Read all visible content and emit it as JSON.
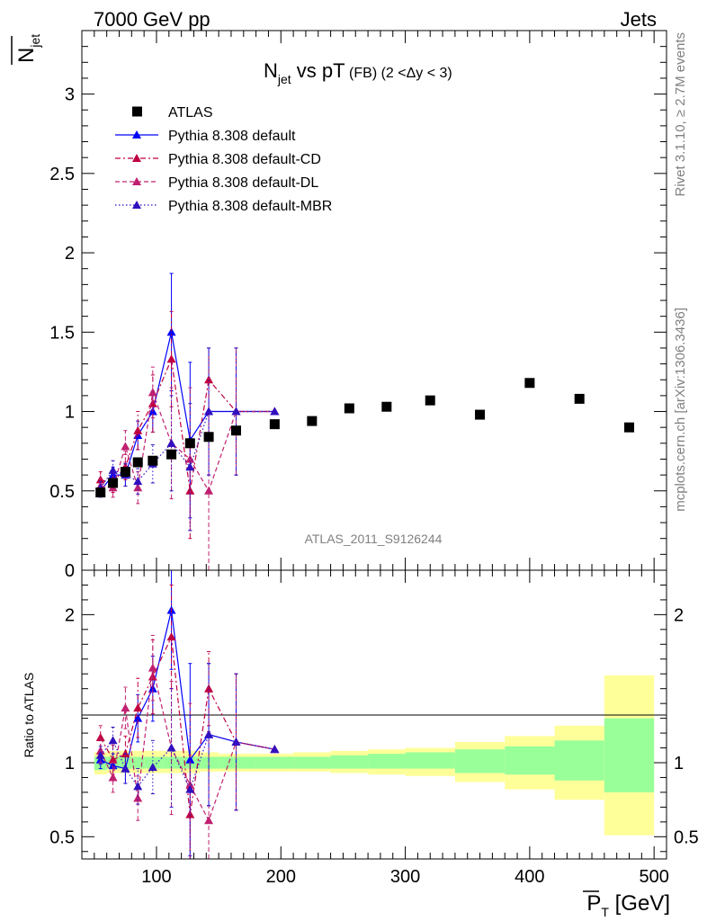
{
  "header": {
    "left": "7000 GeV pp",
    "right": "Jets"
  },
  "side_text": {
    "top": "Rivet 3.1.10, ≥ 2.7M events",
    "bottom": "mcplots.cern.ch [arXiv:1306.3436]"
  },
  "watermark": "ATLAS_2011_S9126244",
  "chart_data": [
    {
      "type": "scatter",
      "title_parts": {
        "n": "N",
        "sub": "jet",
        "mid": " vs pT",
        "tail": " (FB) (2 <Δy < 3)"
      },
      "ylabel_parts": {
        "n": "N",
        "sub": "jet"
      },
      "ylim": [
        0,
        3.4
      ],
      "xlim": [
        40,
        510
      ],
      "yticks": [
        0,
        0.5,
        1,
        1.5,
        2,
        2.5,
        3
      ],
      "yticklabels": [
        "0",
        "0.5",
        "1",
        "1.5",
        "2",
        "2.5",
        "3"
      ],
      "legend": [
        {
          "label": "ATLAS",
          "key": "atlas"
        },
        {
          "label": "Pythia 8.308 default",
          "key": "default"
        },
        {
          "label": "Pythia 8.308 default-CD",
          "key": "cd"
        },
        {
          "label": "Pythia 8.308 default-DL",
          "key": "dl"
        },
        {
          "label": "Pythia 8.308 default-MBR",
          "key": "mbr"
        }
      ],
      "legend_position": "top-left",
      "series": [
        {
          "key": "atlas",
          "name": "ATLAS",
          "color": "#000000",
          "marker": "square",
          "x": [
            55,
            65,
            75,
            85,
            97,
            112,
            127,
            142,
            164,
            195,
            225,
            255,
            285,
            320,
            360,
            400,
            440,
            480
          ],
          "y": [
            0.49,
            0.55,
            0.62,
            0.68,
            0.69,
            0.73,
            0.8,
            0.84,
            0.88,
            0.92,
            0.94,
            1.02,
            1.03,
            1.07,
            0.98,
            1.18,
            1.08,
            0.9
          ]
        },
        {
          "key": "default",
          "name": "Pythia 8.308 default",
          "color": "#0000ff",
          "dash": "",
          "marker": "triangle",
          "x": [
            55,
            65,
            75,
            85,
            97,
            112,
            127,
            142,
            164,
            195
          ],
          "y": [
            0.5,
            0.6,
            0.6,
            0.85,
            1.0,
            1.5,
            0.82,
            1.0,
            1.0,
            1.0
          ],
          "yerr": [
            0.04,
            0.05,
            0.07,
            0.09,
            0.13,
            0.37,
            0.49,
            0.4,
            0.4,
            0
          ]
        },
        {
          "key": "cd",
          "name": "Pythia 8.308 default-CD",
          "color": "#c00040",
          "dash": "6,3,2,3",
          "marker": "triangle",
          "x": [
            55,
            65,
            75,
            85,
            97,
            112,
            127,
            142,
            164,
            195
          ],
          "y": [
            0.57,
            0.55,
            0.65,
            0.88,
            1.05,
            1.33,
            0.5,
            1.2,
            1.0,
            1.0
          ],
          "yerr": [
            0.05,
            0.06,
            0.08,
            0.12,
            0.18,
            0.3,
            0.3,
            0.2,
            0.4,
            0
          ]
        },
        {
          "key": "dl",
          "name": "Pythia 8.308 default-DL",
          "color": "#c02070",
          "dash": "5,3",
          "marker": "triangle",
          "x": [
            55,
            65,
            75,
            85,
            97,
            112,
            127,
            142,
            164,
            195
          ],
          "y": [
            0.53,
            0.52,
            0.78,
            0.52,
            1.12,
            0.8,
            0.7,
            0.5,
            1.0,
            1.0
          ],
          "yerr": [
            0.05,
            0.06,
            0.1,
            0.1,
            0.16,
            0.35,
            0.45,
            0.5,
            0.4,
            0
          ]
        },
        {
          "key": "mbr",
          "name": "Pythia 8.308 default-MBR",
          "color": "#3010c0",
          "dash": "1.5,2.5",
          "marker": "triangle",
          "x": [
            55,
            65,
            75,
            85,
            97,
            112,
            127,
            142,
            164,
            195
          ],
          "y": [
            0.52,
            0.63,
            0.6,
            0.56,
            0.67,
            0.8,
            0.65,
            1.0,
            1.0,
            1.0
          ],
          "yerr": [
            0.04,
            0.06,
            0.07,
            0.08,
            0.12,
            0.3,
            0.4,
            0.4,
            0.4,
            0
          ]
        }
      ]
    },
    {
      "type": "line",
      "ylabel": "Ratio to ATLAS",
      "xlabel_parts": {
        "p": "P",
        "sub": "T",
        "tail": " [GeV]"
      },
      "ylim": [
        0.35,
        2.3
      ],
      "xlim": [
        40,
        510
      ],
      "xticks": [
        100,
        200,
        300,
        400,
        500
      ],
      "xticklabels": [
        "100",
        "200",
        "300",
        "400",
        "500"
      ],
      "yticks": [
        0.5,
        1,
        2
      ],
      "yticklabels": [
        "0.5",
        "1",
        "2"
      ],
      "bands": {
        "bin_edges": [
          50,
          60,
          70,
          80,
          90,
          105,
          120,
          135,
          150,
          180,
          210,
          240,
          270,
          300,
          340,
          380,
          420,
          460,
          500
        ],
        "yellow_low": [
          0.92,
          0.93,
          0.93,
          0.93,
          0.93,
          0.93,
          0.93,
          0.94,
          0.94,
          0.94,
          0.94,
          0.93,
          0.92,
          0.91,
          0.87,
          0.82,
          0.75,
          0.51
        ],
        "yellow_high": [
          1.07,
          1.08,
          1.08,
          1.08,
          1.08,
          1.08,
          1.08,
          1.07,
          1.06,
          1.06,
          1.07,
          1.08,
          1.09,
          1.1,
          1.14,
          1.18,
          1.25,
          1.59
        ],
        "green_low": [
          0.95,
          0.96,
          0.96,
          0.96,
          0.96,
          0.96,
          0.96,
          0.96,
          0.96,
          0.96,
          0.96,
          0.96,
          0.96,
          0.96,
          0.93,
          0.92,
          0.88,
          0.8
        ],
        "green_high": [
          1.04,
          1.04,
          1.04,
          1.04,
          1.04,
          1.04,
          1.04,
          1.04,
          1.04,
          1.04,
          1.04,
          1.05,
          1.06,
          1.07,
          1.09,
          1.11,
          1.15,
          1.3
        ]
      },
      "series": [
        {
          "key": "default",
          "name": "Pythia 8.308 default",
          "color": "#0000ff",
          "dash": "",
          "x": [
            55,
            65,
            75,
            85,
            97,
            112,
            127,
            142,
            164,
            195
          ],
          "y": [
            1.02,
            0.98,
            0.96,
            1.3,
            1.5,
            2.03,
            1.02,
            1.19,
            1.14,
            1.09
          ],
          "yerr": [
            0.06,
            0.08,
            0.1,
            0.16,
            0.22,
            0.4,
            0.65,
            0.48,
            0.46,
            0
          ]
        },
        {
          "key": "cd",
          "name": "Pythia 8.308 default-CD",
          "color": "#c00040",
          "dash": "6,3,2,3",
          "x": [
            55,
            65,
            75,
            85,
            97,
            112,
            127,
            142,
            164,
            195
          ],
          "y": [
            1.17,
            1.02,
            1.06,
            1.37,
            1.58,
            1.85,
            0.65,
            1.5,
            1.14,
            1.09
          ],
          "yerr": [
            0.08,
            0.1,
            0.12,
            0.2,
            0.25,
            0.35,
            0.4,
            0.25,
            0.46,
            0
          ]
        },
        {
          "key": "dl",
          "name": "Pythia 8.308 default-DL",
          "color": "#c02070",
          "dash": "5,3",
          "x": [
            55,
            65,
            75,
            85,
            97,
            112,
            127,
            142,
            164,
            195
          ],
          "y": [
            1.08,
            0.9,
            1.37,
            0.76,
            1.64,
            1.1,
            0.85,
            0.61,
            1.14,
            1.09
          ],
          "yerr": [
            0.08,
            0.1,
            0.14,
            0.15,
            0.22,
            0.45,
            0.55,
            0.6,
            0.46,
            0
          ]
        },
        {
          "key": "mbr",
          "name": "Pythia 8.308 default-MBR",
          "color": "#3010c0",
          "dash": "1.5,2.5",
          "x": [
            55,
            65,
            75,
            85,
            97,
            112,
            127,
            142,
            164,
            195
          ],
          "y": [
            1.05,
            1.15,
            0.96,
            0.84,
            0.97,
            1.1,
            0.82,
            1.19,
            1.14,
            1.09
          ],
          "yerr": [
            0.06,
            0.09,
            0.1,
            0.12,
            0.18,
            0.4,
            0.5,
            0.48,
            0.46,
            0
          ]
        }
      ]
    }
  ]
}
